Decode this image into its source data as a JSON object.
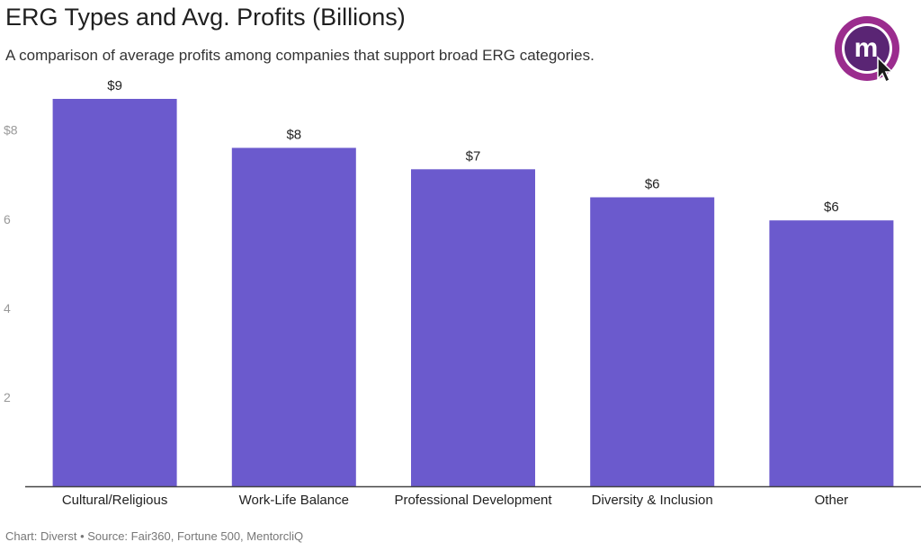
{
  "header": {
    "title": "ERG Types and Avg. Profits (Billions)",
    "subtitle": "A comparison of average profits among companies that support broad ERG categories."
  },
  "logo": {
    "icon": "mentorcliq-logo-icon",
    "letter": "m",
    "colors": {
      "ring": "#9b2c8e",
      "inner": "#ffffff",
      "fill": "#5a2574",
      "cursor": "#1a1a1a"
    }
  },
  "chart_data": {
    "type": "bar",
    "title": "ERG Types and Avg. Profits (Billions)",
    "subtitle": "A comparison of average profits among companies that support broad ERG categories.",
    "xlabel": "",
    "ylabel": "",
    "categories": [
      "Cultural/Religious",
      "Work-Life Balance",
      "Professional Development",
      "Diversity & Inclusion",
      "Other"
    ],
    "values": [
      8.7,
      7.6,
      7.12,
      6.49,
      5.97
    ],
    "data_labels": [
      "$9",
      "$8",
      "$7",
      "$6",
      "$6"
    ],
    "ylim": [
      0,
      8.7
    ],
    "yticks": [
      2,
      4,
      6,
      8
    ],
    "ytick_labels": [
      "2",
      "4",
      "6",
      "$8"
    ],
    "grid": false,
    "bar_color": "#6b5acd"
  },
  "footer": {
    "text": "Chart: Diverst • Source: Fair360, Fortune 500, MentorcliQ"
  }
}
